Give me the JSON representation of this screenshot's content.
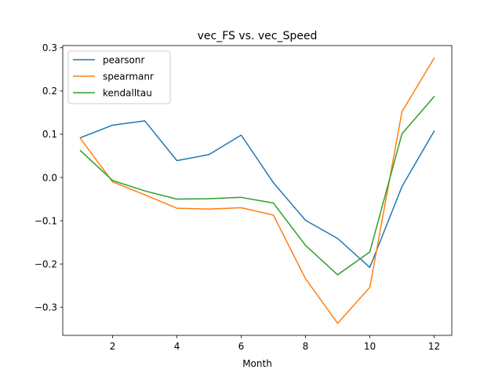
{
  "chart_data": {
    "type": "line",
    "title": "vec_FS vs. vec_Speed",
    "xlabel": "Month",
    "ylabel": "",
    "x": [
      1,
      2,
      3,
      4,
      5,
      6,
      7,
      8,
      9,
      10,
      11,
      12
    ],
    "xlim": [
      0.45,
      12.55
    ],
    "ylim": [
      -0.365,
      0.305
    ],
    "xticks": [
      2,
      4,
      6,
      8,
      10,
      12
    ],
    "yticks": [
      -0.3,
      -0.2,
      -0.1,
      0.0,
      0.1,
      0.2,
      0.3
    ],
    "ytick_labels": [
      "−0.3",
      "−0.2",
      "−0.1",
      "0.0",
      "0.1",
      "0.2",
      "0.3"
    ],
    "grid": false,
    "legend_position": "top-left",
    "series": [
      {
        "name": "pearsonr",
        "color": "#1f77b4",
        "values": [
          0.092,
          0.121,
          0.131,
          0.039,
          0.053,
          0.098,
          -0.012,
          -0.099,
          -0.141,
          -0.208,
          -0.021,
          0.107
        ]
      },
      {
        "name": "spearmanr",
        "color": "#ff7f0e",
        "values": [
          0.09,
          -0.01,
          -0.04,
          -0.071,
          -0.073,
          -0.07,
          -0.087,
          -0.234,
          -0.337,
          -0.254,
          0.152,
          0.276
        ]
      },
      {
        "name": "kendalltau",
        "color": "#2ca02c",
        "values": [
          0.062,
          -0.007,
          -0.031,
          -0.05,
          -0.049,
          -0.046,
          -0.059,
          -0.157,
          -0.225,
          -0.172,
          0.101,
          0.187
        ]
      }
    ]
  }
}
